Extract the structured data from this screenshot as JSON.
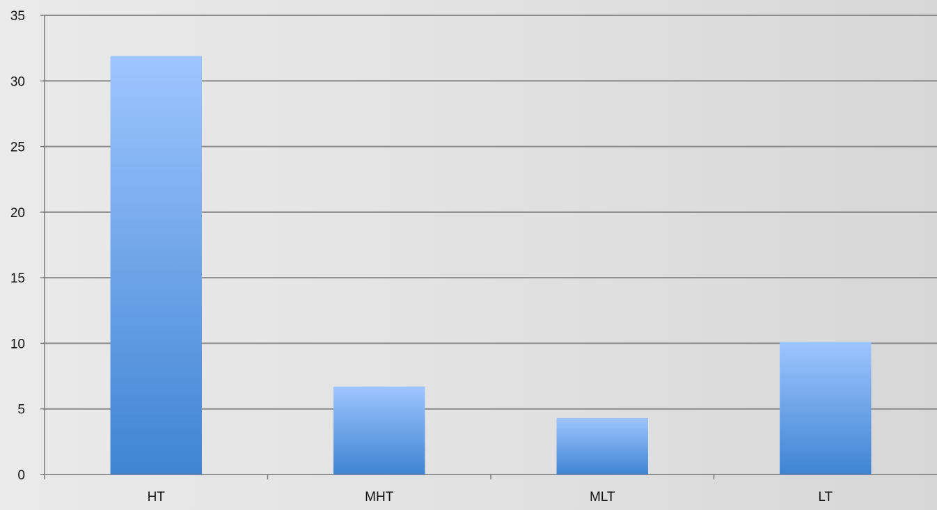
{
  "chart_data": {
    "type": "bar",
    "title": "",
    "xlabel": "",
    "ylabel": "",
    "categories": [
      "HT",
      "MHT",
      "MLT",
      "LT"
    ],
    "values": [
      31.9,
      6.7,
      4.3,
      10.1
    ],
    "ylim": [
      0,
      35
    ],
    "yticks": [
      0,
      5,
      10,
      15,
      20,
      25,
      30,
      35
    ],
    "grid": true,
    "legend": "none",
    "colors": {
      "bar_top": "#9ec5ff",
      "bar_bottom": "#3f84d2",
      "grid": "#8a8a8a",
      "axis": "#777777",
      "text": "#111111"
    }
  }
}
